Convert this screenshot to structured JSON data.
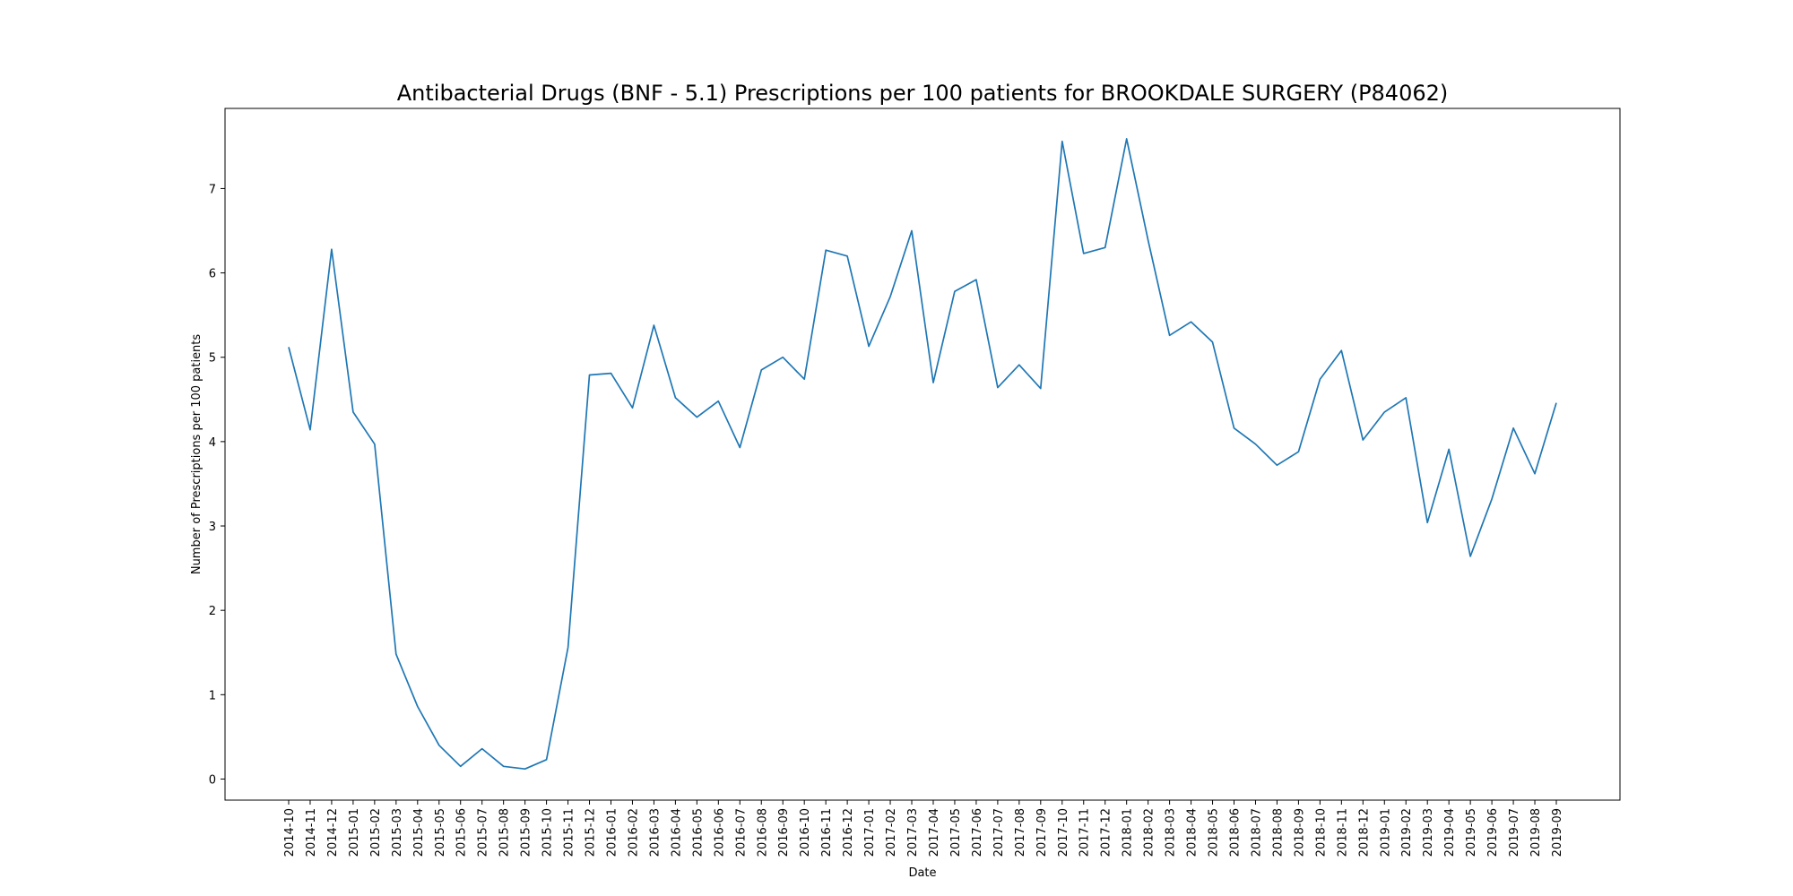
{
  "chart_data": {
    "type": "line",
    "title": "Antibacterial Drugs (BNF - 5.1) Prescriptions per 100 patients for BROOKDALE SURGERY (P84062)",
    "xlabel": "Date",
    "ylabel": "Number of Prescriptions per 100 patients",
    "ylim": [
      -0.25,
      7.95
    ],
    "yticks": [
      0,
      1,
      2,
      3,
      4,
      5,
      6,
      7
    ],
    "grid": false,
    "line_color": "#1f77b4",
    "x": [
      "2014-10",
      "2014-11",
      "2014-12",
      "2015-01",
      "2015-02",
      "2015-03",
      "2015-04",
      "2015-05",
      "2015-06",
      "2015-07",
      "2015-08",
      "2015-09",
      "2015-10",
      "2015-11",
      "2015-12",
      "2016-01",
      "2016-02",
      "2016-03",
      "2016-04",
      "2016-05",
      "2016-06",
      "2016-07",
      "2016-08",
      "2016-09",
      "2016-10",
      "2016-11",
      "2016-12",
      "2017-01",
      "2017-02",
      "2017-03",
      "2017-04",
      "2017-05",
      "2017-06",
      "2017-07",
      "2017-08",
      "2017-09",
      "2017-10",
      "2017-11",
      "2017-12",
      "2018-01",
      "2018-02",
      "2018-03",
      "2018-04",
      "2018-05",
      "2018-06",
      "2018-07",
      "2018-08",
      "2018-09",
      "2018-10",
      "2018-11",
      "2018-12",
      "2019-01",
      "2019-02",
      "2019-03",
      "2019-04",
      "2019-05",
      "2019-06",
      "2019-07",
      "2019-08",
      "2019-09"
    ],
    "series": [
      {
        "values": [
          5.12,
          4.14,
          6.28,
          4.35,
          3.97,
          1.48,
          0.86,
          0.4,
          0.15,
          0.36,
          0.15,
          0.12,
          0.23,
          1.56,
          4.79,
          4.81,
          4.4,
          5.38,
          4.52,
          4.29,
          4.48,
          3.93,
          4.85,
          5.0,
          4.74,
          6.27,
          6.2,
          5.13,
          5.72,
          6.5,
          4.7,
          5.78,
          5.92,
          4.64,
          4.91,
          4.63,
          7.56,
          6.23,
          6.3,
          7.59,
          6.39,
          5.26,
          5.42,
          5.18,
          4.16,
          3.97,
          3.72,
          3.88,
          4.74,
          5.08,
          4.02,
          4.35,
          4.52,
          3.04,
          3.91,
          2.64,
          3.32,
          4.16,
          3.62,
          4.46
        ]
      }
    ]
  }
}
